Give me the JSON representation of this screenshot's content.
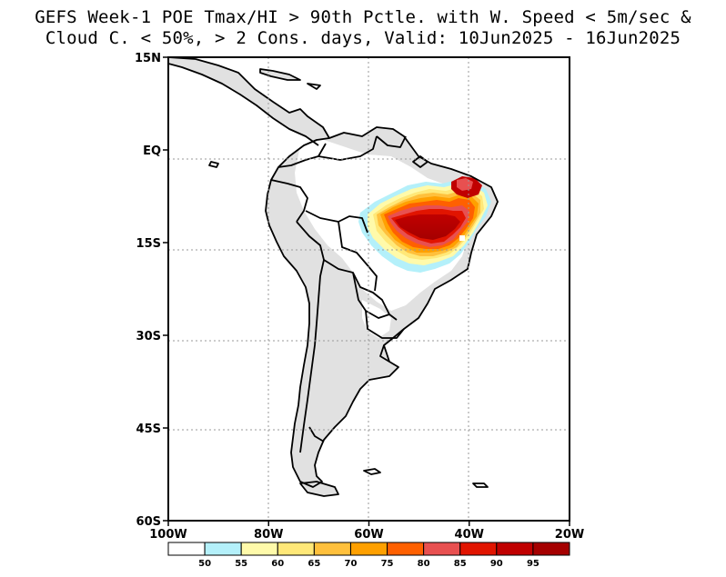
{
  "title": {
    "line1": "GEFS Week-1 POE Tmax/HI > 90th Pctle. with W. Speed < 5m/sec &",
    "line2": "Cloud C. < 50%, > 2 Cons. days, Valid: 10Jun2025 - 16Jun2025"
  },
  "map": {
    "lon_range": [
      -100,
      -20
    ],
    "lat_range": [
      -60,
      15
    ],
    "lat_ticks": [
      {
        "value": 15,
        "label": "15N"
      },
      {
        "value": 0,
        "label": "EQ"
      },
      {
        "value": -15,
        "label": "15S"
      },
      {
        "value": -30,
        "label": "30S"
      },
      {
        "value": -45,
        "label": "45S"
      },
      {
        "value": -60,
        "label": "60S"
      }
    ],
    "lon_ticks": [
      {
        "value": -100,
        "label": "100W"
      },
      {
        "value": -80,
        "label": "80W"
      },
      {
        "value": -60,
        "label": "60W"
      },
      {
        "value": -40,
        "label": "40W"
      },
      {
        "value": -20,
        "label": "20W"
      }
    ],
    "land_color": "#e1e1e1",
    "ocean_color": "#ffffff"
  },
  "colorbar": {
    "labels": [
      "50",
      "55",
      "60",
      "65",
      "70",
      "75",
      "80",
      "85",
      "90",
      "95"
    ],
    "colors": [
      "#ffffff",
      "#b4f0fa",
      "#fffaaa",
      "#ffe878",
      "#ffc03c",
      "#ffa000",
      "#ff6000",
      "#e85050",
      "#e11400",
      "#c00000",
      "#a50000"
    ]
  }
}
